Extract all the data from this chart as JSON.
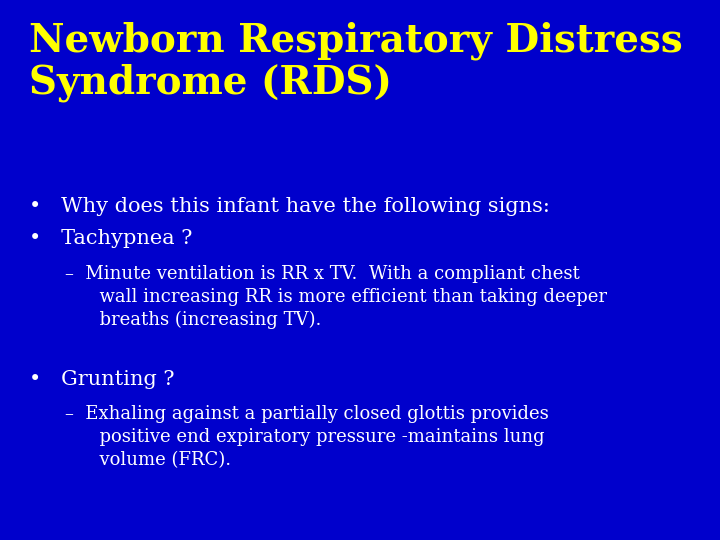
{
  "background_color": "#0000CC",
  "title_line1": "Newborn Respiratory Distress",
  "title_line2": "Syndrome (RDS)",
  "title_color": "#FFFF00",
  "title_fontsize": 28,
  "body_color": "#FFFFFF",
  "body_fontsize": 15,
  "sub_fontsize": 13,
  "bullet1": "Why does this infant have the following signs:",
  "bullet2": "Tachypnea ?",
  "sub1_line1": "Minute ventilation is RR x TV.  With a compliant chest",
  "sub1_line2": "wall increasing RR is more efficient than taking deeper",
  "sub1_line3": "breaths (increasing TV).",
  "bullet3": "Grunting ?",
  "sub2_line1": "Exhaling against a partially closed glottis provides",
  "sub2_line2": "positive end expiratory pressure -maintains lung",
  "sub2_line3": "volume (FRC)."
}
